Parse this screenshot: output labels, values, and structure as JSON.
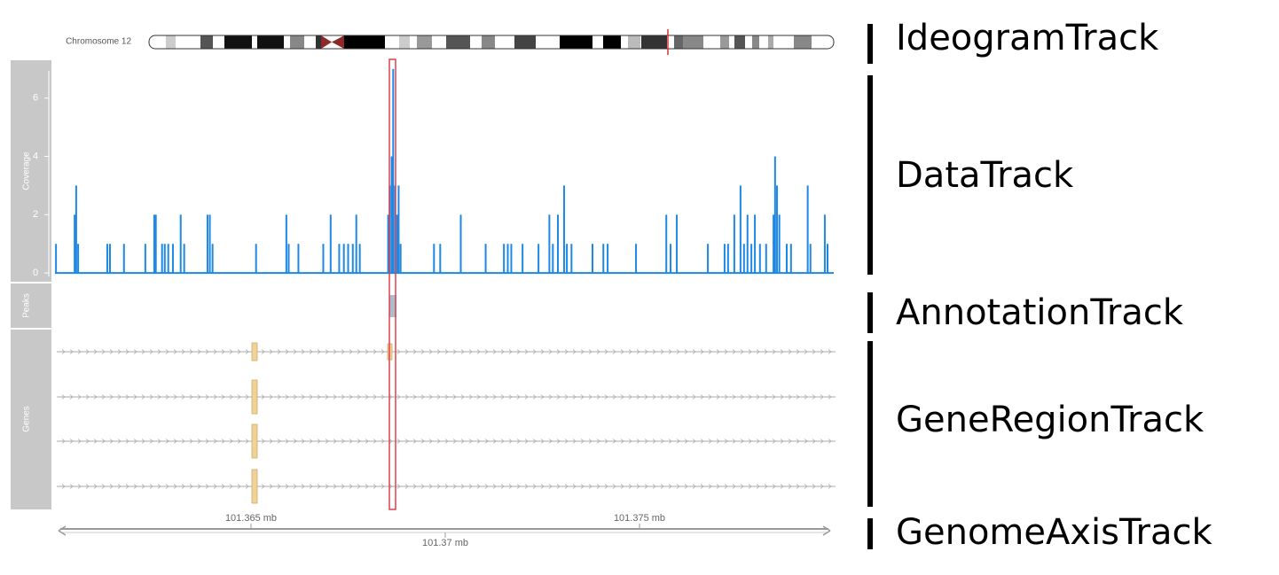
{
  "ideogram": {
    "title": "Chromosome 12"
  },
  "chart_data": {
    "type": "bar",
    "ylabel": "Coverage",
    "color": "#1e88e5",
    "x": [
      101.35998,
      101.36046,
      101.3605,
      101.36055,
      101.3613,
      101.36137,
      101.36173,
      101.36228,
      101.36251,
      101.36255,
      101.36271,
      101.36278,
      101.36287,
      101.36299,
      101.36319,
      101.36328,
      101.36388,
      101.36394,
      101.36401,
      101.36513,
      101.36591,
      101.36597,
      101.36622,
      101.36686,
      101.36705,
      101.36727,
      101.36739,
      101.3675,
      101.36762,
      101.36771,
      101.3678,
      101.36853,
      101.36857,
      101.36862,
      101.36866,
      101.36871,
      101.36876,
      101.3688,
      101.36885,
      101.36971,
      101.36987,
      101.3704,
      101.37104,
      101.37151,
      101.37161,
      101.3717,
      101.37199,
      101.3724,
      101.37268,
      101.37277,
      101.3729,
      101.37306,
      101.37313,
      101.37325,
      101.37379,
      101.37407,
      101.37418,
      101.37491,
      101.37569,
      101.3758,
      101.37596,
      101.37676,
      101.37719,
      101.37728,
      101.37744,
      101.3776,
      101.37769,
      101.37778,
      101.37788,
      101.37797,
      101.3781,
      101.37826,
      101.37845,
      101.37849,
      101.37854,
      101.3786,
      101.37879,
      101.3789,
      101.37933,
      101.3794,
      101.37977,
      101.37984
    ],
    "values": [
      1,
      2,
      3,
      1,
      1,
      1,
      1,
      1,
      2,
      2,
      1,
      1,
      1,
      1,
      2,
      1,
      2,
      2,
      1,
      1,
      2,
      1,
      1,
      1,
      2,
      1,
      1,
      1,
      1,
      2,
      1,
      2,
      3,
      4,
      7,
      3,
      2,
      3,
      1,
      1,
      1,
      2,
      1,
      1,
      1,
      1,
      1,
      1,
      2,
      1,
      2,
      3,
      1,
      1,
      1,
      1,
      1,
      1,
      2,
      1,
      2,
      1,
      1,
      1,
      2,
      3,
      1,
      2,
      1,
      2,
      1,
      1,
      2,
      4,
      3,
      2,
      1,
      1,
      3,
      1,
      2,
      1
    ],
    "xlim": [
      101.36,
      101.38
    ],
    "ylim": [
      -0.3,
      7.3
    ],
    "yticks": [
      0,
      2,
      4,
      6
    ],
    "xticks": [
      {
        "value": 101.365,
        "label": "101.365 mb"
      },
      {
        "value": 101.37,
        "label": "101.37 mb"
      },
      {
        "value": 101.375,
        "label": "101.375 mb"
      }
    ]
  },
  "tracks": {
    "peaks": "Peaks",
    "genes": "Genes"
  },
  "track_names": [
    "IdeogramTrack",
    "DataTrack",
    "AnnotationTrack",
    "GeneRegionTrack",
    "GenomeAxisTrack"
  ]
}
